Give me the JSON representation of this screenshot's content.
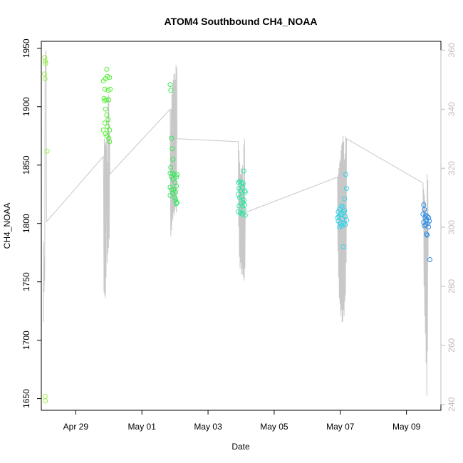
{
  "chart_data": {
    "type": "scatter",
    "title": "ATOM4 Southbound CH4_NOAA",
    "xlabel": "Date",
    "ylabel": "CH4_NOAA",
    "x_ticks": [
      "Apr 29",
      "May 01",
      "May 03",
      "May 05",
      "May 07",
      "May 09"
    ],
    "y_ticks": [
      1650,
      1700,
      1750,
      1800,
      1850,
      1900,
      1950
    ],
    "y2_ticks": [
      240,
      260,
      280,
      300,
      320,
      340,
      360
    ],
    "xlim": [
      "2018-04-27 23:00",
      "2018-05-10 01:00"
    ],
    "ylim": [
      1640,
      1956
    ],
    "y2lim": [
      238,
      363
    ],
    "grid": false,
    "secondary_series_color": "#c8c8c8",
    "scatter_color_scale": [
      "#98f046",
      "#3ef02a",
      "#2ae66e",
      "#2ae6c8",
      "#2ad2f0",
      "#2a8ae8"
    ],
    "points": [
      [
        "2018-04-28 01:30",
        1942
      ],
      [
        "2018-04-28 01:50",
        1939
      ],
      [
        "2018-04-28 02:10",
        1937
      ],
      [
        "2018-04-28 01:20",
        1928
      ],
      [
        "2018-04-28 01:40",
        1924
      ],
      [
        "2018-04-28 03:10",
        1862
      ],
      [
        "2018-04-28 01:45",
        1652
      ],
      [
        "2018-04-28 01:55",
        1648
      ],
      [
        "2018-04-29 20:00",
        1922
      ],
      [
        "2018-04-29 21:30",
        1924
      ],
      [
        "2018-04-29 22:30",
        1932
      ],
      [
        "2018-04-29 23:00",
        1926
      ],
      [
        "2018-04-30 00:30",
        1925
      ],
      [
        "2018-04-29 21:00",
        1915
      ],
      [
        "2018-04-29 23:30",
        1914
      ],
      [
        "2018-04-30 01:00",
        1915
      ],
      [
        "2018-04-29 20:30",
        1907
      ],
      [
        "2018-04-29 22:00",
        1906
      ],
      [
        "2018-04-30 00:00",
        1906
      ],
      [
        "2018-04-29 21:30",
        1898
      ],
      [
        "2018-04-29 22:30",
        1893
      ],
      [
        "2018-04-29 21:00",
        1886
      ],
      [
        "2018-04-29 23:00",
        1883
      ],
      [
        "2018-04-29 20:00",
        1880
      ],
      [
        "2018-04-29 21:30",
        1877
      ],
      [
        "2018-04-30 00:30",
        1880
      ],
      [
        "2018-04-29 22:30",
        1875
      ],
      [
        "2018-04-30 00:00",
        1873
      ],
      [
        "2018-04-30 00:30",
        1870
      ],
      [
        "2018-04-29 23:30",
        1889
      ],
      [
        "2018-04-29 21:00",
        1905
      ],
      [
        "2018-05-01 20:30",
        1919
      ],
      [
        "2018-05-01 21:00",
        1914
      ],
      [
        "2018-05-01 21:30",
        1873
      ],
      [
        "2018-05-01 22:00",
        1864
      ],
      [
        "2018-05-01 22:30",
        1855
      ],
      [
        "2018-05-01 21:00",
        1848
      ],
      [
        "2018-05-01 20:30",
        1843
      ],
      [
        "2018-05-01 22:00",
        1843
      ],
      [
        "2018-05-01 23:30",
        1842
      ],
      [
        "2018-05-02 01:00",
        1840
      ],
      [
        "2018-05-02 01:30",
        1842
      ],
      [
        "2018-05-01 21:30",
        1840
      ],
      [
        "2018-05-01 22:30",
        1838
      ],
      [
        "2018-05-02 00:00",
        1835
      ],
      [
        "2018-05-02 01:00",
        1832
      ],
      [
        "2018-05-01 20:30",
        1831
      ],
      [
        "2018-05-01 21:30",
        1829
      ],
      [
        "2018-05-01 23:00",
        1829
      ],
      [
        "2018-05-02 00:30",
        1827
      ],
      [
        "2018-05-01 22:30",
        1826
      ],
      [
        "2018-05-01 20:30",
        1824
      ],
      [
        "2018-05-02 00:00",
        1822
      ],
      [
        "2018-05-02 00:30",
        1820
      ],
      [
        "2018-05-02 01:30",
        1818
      ],
      [
        "2018-05-02 01:00",
        1817
      ],
      [
        "2018-05-03 22:00",
        1835
      ],
      [
        "2018-05-03 23:00",
        1836
      ],
      [
        "2018-05-04 00:30",
        1835
      ],
      [
        "2018-05-04 01:30",
        1834
      ],
      [
        "2018-05-04 02:00",
        1845
      ],
      [
        "2018-05-03 22:30",
        1830
      ],
      [
        "2018-05-03 23:30",
        1828
      ],
      [
        "2018-05-04 01:00",
        1831
      ],
      [
        "2018-05-04 02:30",
        1828
      ],
      [
        "2018-05-03 22:00",
        1825
      ],
      [
        "2018-05-03 23:00",
        1822
      ],
      [
        "2018-05-04 00:30",
        1823
      ],
      [
        "2018-05-04 02:00",
        1820
      ],
      [
        "2018-05-04 03:00",
        1827
      ],
      [
        "2018-05-03 22:30",
        1815
      ],
      [
        "2018-05-04 00:00",
        1817
      ],
      [
        "2018-05-04 01:30",
        1818
      ],
      [
        "2018-05-04 02:30",
        1816
      ],
      [
        "2018-05-03 22:00",
        1810
      ],
      [
        "2018-05-03 23:30",
        1809
      ],
      [
        "2018-05-04 01:00",
        1808
      ],
      [
        "2018-05-04 03:00",
        1807
      ],
      [
        "2018-05-04 02:00",
        1812
      ],
      [
        "2018-05-06 22:30",
        1810
      ],
      [
        "2018-05-06 23:30",
        1812
      ],
      [
        "2018-05-07 01:00",
        1815
      ],
      [
        "2018-05-07 02:00",
        1814
      ],
      [
        "2018-05-07 04:00",
        1842
      ],
      [
        "2018-05-07 04:30",
        1830
      ],
      [
        "2018-05-07 03:00",
        1821
      ],
      [
        "2018-05-07 00:30",
        1808
      ],
      [
        "2018-05-07 02:30",
        1809
      ],
      [
        "2018-05-06 22:00",
        1805
      ],
      [
        "2018-05-06 23:00",
        1806
      ],
      [
        "2018-05-07 01:30",
        1804
      ],
      [
        "2018-05-07 03:30",
        1806
      ],
      [
        "2018-05-07 04:30",
        1803
      ],
      [
        "2018-05-06 22:30",
        1802
      ],
      [
        "2018-05-07 00:00",
        1800
      ],
      [
        "2018-05-07 02:30",
        1800
      ],
      [
        "2018-05-07 03:30",
        1799
      ],
      [
        "2018-05-07 01:00",
        1798
      ],
      [
        "2018-05-06 23:30",
        1797
      ],
      [
        "2018-05-07 02:00",
        1780
      ],
      [
        "2018-05-07 03:00",
        1811
      ],
      [
        "2018-05-09 12:30",
        1816
      ],
      [
        "2018-05-09 13:00",
        1812
      ],
      [
        "2018-05-09 14:00",
        1807
      ],
      [
        "2018-05-09 15:00",
        1806
      ],
      [
        "2018-05-09 16:00",
        1805
      ],
      [
        "2018-05-09 12:00",
        1808
      ],
      [
        "2018-05-09 13:30",
        1805
      ],
      [
        "2018-05-09 14:30",
        1803
      ],
      [
        "2018-05-09 16:30",
        1802
      ],
      [
        "2018-05-09 12:30",
        1801
      ],
      [
        "2018-05-09 14:00",
        1799
      ],
      [
        "2018-05-09 15:30",
        1800
      ],
      [
        "2018-05-09 16:00",
        1797
      ],
      [
        "2018-05-09 13:00",
        1798
      ],
      [
        "2018-05-09 14:30",
        1791
      ],
      [
        "2018-05-09 15:00",
        1790
      ],
      [
        "2018-05-09 17:00",
        1769
      ]
    ],
    "secondary_line": [
      [
        "2018-04-28 00:30",
        268
      ],
      [
        "2018-04-28 00:45",
        295
      ],
      [
        "2018-04-28 01:00",
        278
      ],
      [
        "2018-04-28 01:15",
        290
      ],
      [
        "2018-04-28 01:30",
        282
      ],
      [
        "2018-04-28 01:45",
        350
      ],
      [
        "2018-04-28 02:00",
        358
      ],
      [
        "2018-04-28 02:15",
        360
      ],
      [
        "2018-04-28 02:30",
        355
      ],
      [
        "2018-04-28 02:45",
        305
      ],
      [
        "2018-04-28 03:00",
        302
      ],
      [
        "2018-04-29 20:00",
        324
      ],
      [
        "2018-04-29 20:15",
        312
      ],
      [
        "2018-04-29 20:30",
        278
      ],
      [
        "2018-04-29 20:45",
        330
      ],
      [
        "2018-04-29 21:00",
        277
      ],
      [
        "2018-04-29 21:15",
        328
      ],
      [
        "2018-04-29 21:30",
        276
      ],
      [
        "2018-04-29 21:45",
        329
      ],
      [
        "2018-04-29 22:00",
        283
      ],
      [
        "2018-04-29 22:15",
        326
      ],
      [
        "2018-04-29 22:30",
        330
      ],
      [
        "2018-04-29 22:45",
        288
      ],
      [
        "2018-04-29 23:00",
        322
      ],
      [
        "2018-04-29 23:15",
        291
      ],
      [
        "2018-04-29 23:30",
        344
      ],
      [
        "2018-04-29 23:45",
        293
      ],
      [
        "2018-04-30 00:00",
        345
      ],
      [
        "2018-04-30 00:15",
        296
      ],
      [
        "2018-04-30 00:30",
        332
      ],
      [
        "2018-04-30 00:45",
        318
      ],
      [
        "2018-05-01 20:30",
        340
      ],
      [
        "2018-05-01 20:45",
        310
      ],
      [
        "2018-05-01 21:00",
        297
      ],
      [
        "2018-05-01 21:15",
        340
      ],
      [
        "2018-05-01 21:30",
        299
      ],
      [
        "2018-05-01 21:45",
        345
      ],
      [
        "2018-05-01 22:00",
        302
      ],
      [
        "2018-05-01 22:15",
        348
      ],
      [
        "2018-05-01 22:30",
        303
      ],
      [
        "2018-05-01 22:45",
        350
      ],
      [
        "2018-05-01 23:00",
        305
      ],
      [
        "2018-05-01 23:15",
        352
      ],
      [
        "2018-05-01 23:30",
        304
      ],
      [
        "2018-05-01 23:45",
        352
      ],
      [
        "2018-05-02 00:00",
        306
      ],
      [
        "2018-05-02 00:15",
        350
      ],
      [
        "2018-05-02 00:30",
        307
      ],
      [
        "2018-05-02 00:45",
        355
      ],
      [
        "2018-05-02 01:00",
        305
      ],
      [
        "2018-05-02 01:15",
        354
      ],
      [
        "2018-05-02 01:30",
        330
      ],
      [
        "2018-05-03 22:00",
        329
      ],
      [
        "2018-05-03 22:15",
        300
      ],
      [
        "2018-05-03 22:30",
        326
      ],
      [
        "2018-05-03 22:45",
        290
      ],
      [
        "2018-05-03 23:00",
        322
      ],
      [
        "2018-05-03 23:15",
        286
      ],
      [
        "2018-05-03 23:30",
        318
      ],
      [
        "2018-05-03 23:45",
        288
      ],
      [
        "2018-05-04 00:00",
        320
      ],
      [
        "2018-05-04 00:15",
        284
      ],
      [
        "2018-05-04 00:30",
        318
      ],
      [
        "2018-05-04 00:45",
        286
      ],
      [
        "2018-05-04 01:00",
        321
      ],
      [
        "2018-05-04 01:15",
        284
      ],
      [
        "2018-05-04 01:30",
        315
      ],
      [
        "2018-05-04 01:45",
        283
      ],
      [
        "2018-05-04 02:00",
        328
      ],
      [
        "2018-05-04 02:15",
        282
      ],
      [
        "2018-05-04 02:30",
        330
      ],
      [
        "2018-05-04 02:45",
        286
      ],
      [
        "2018-05-04 03:00",
        305
      ],
      [
        "2018-05-06 22:00",
        317
      ],
      [
        "2018-05-06 22:15",
        292
      ],
      [
        "2018-05-06 22:30",
        318
      ],
      [
        "2018-05-06 22:45",
        283
      ],
      [
        "2018-05-06 23:00",
        320
      ],
      [
        "2018-05-06 23:15",
        276
      ],
      [
        "2018-05-06 23:30",
        322
      ],
      [
        "2018-05-06 23:45",
        274
      ],
      [
        "2018-05-07 00:00",
        323
      ],
      [
        "2018-05-07 00:15",
        270
      ],
      [
        "2018-05-07 00:30",
        326
      ],
      [
        "2018-05-07 00:45",
        272
      ],
      [
        "2018-05-07 01:00",
        328
      ],
      [
        "2018-05-07 01:15",
        268
      ],
      [
        "2018-05-07 01:30",
        329
      ],
      [
        "2018-05-07 01:45",
        268
      ],
      [
        "2018-05-07 02:00",
        331
      ],
      [
        "2018-05-07 02:15",
        272
      ],
      [
        "2018-05-07 02:30",
        329
      ],
      [
        "2018-05-07 02:45",
        270
      ],
      [
        "2018-05-07 03:00",
        323
      ],
      [
        "2018-05-07 03:15",
        275
      ],
      [
        "2018-05-07 03:30",
        325
      ],
      [
        "2018-05-07 03:45",
        277
      ],
      [
        "2018-05-07 04:00",
        331
      ],
      [
        "2018-05-07 04:15",
        288
      ],
      [
        "2018-05-07 04:30",
        330
      ],
      [
        "2018-05-09 12:00",
        315
      ],
      [
        "2018-05-09 12:15",
        300
      ],
      [
        "2018-05-09 12:30",
        313
      ],
      [
        "2018-05-09 12:45",
        280
      ],
      [
        "2018-05-09 13:00",
        311
      ],
      [
        "2018-05-09 13:15",
        270
      ],
      [
        "2018-05-09 13:30",
        309
      ],
      [
        "2018-05-09 13:45",
        264
      ],
      [
        "2018-05-09 14:00",
        306
      ],
      [
        "2018-05-09 14:15",
        254
      ],
      [
        "2018-05-09 14:30",
        302
      ],
      [
        "2018-05-09 14:45",
        243
      ],
      [
        "2018-05-09 15:00",
        318
      ],
      [
        "2018-05-09 15:15",
        258
      ],
      [
        "2018-05-09 15:30",
        316
      ],
      [
        "2018-05-09 15:45",
        290
      ]
    ]
  }
}
